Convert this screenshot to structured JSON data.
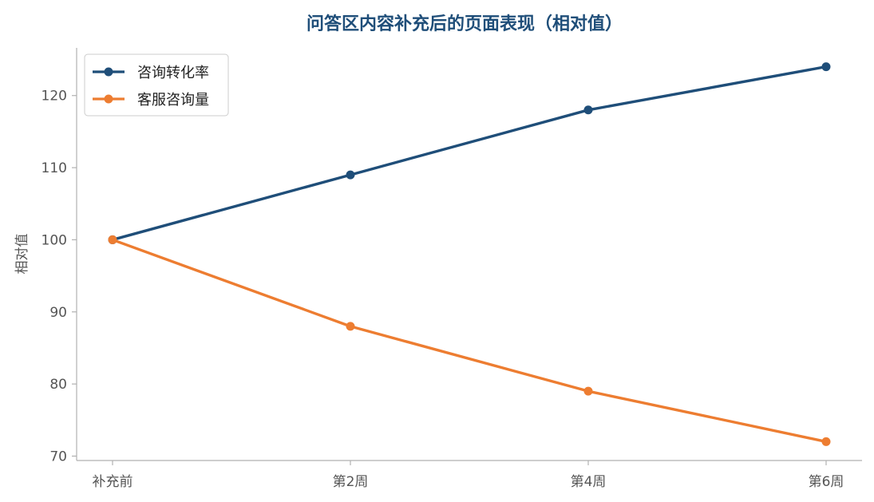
{
  "chart_data": {
    "type": "line",
    "title": "问答区内容补充后的页面表现（相对值）",
    "xlabel": "",
    "ylabel": "相对值",
    "categories": [
      "补充前",
      "第2周",
      "第4周",
      "第6周"
    ],
    "series": [
      {
        "name": "咨询转化率",
        "values": [
          100,
          109,
          118,
          124
        ],
        "color": "#1f4e79"
      },
      {
        "name": "客服咨询量",
        "values": [
          100,
          88,
          79,
          72
        ],
        "color": "#ed7d31"
      }
    ],
    "ylim": [
      69.5,
      126.5
    ],
    "yticks": [
      70,
      80,
      90,
      100,
      110,
      120
    ],
    "grid": false,
    "legend_position": "top-left"
  },
  "colors": {
    "title": "#1f4e79",
    "axis": "#b0b0b0",
    "tick_text": "#555555"
  }
}
